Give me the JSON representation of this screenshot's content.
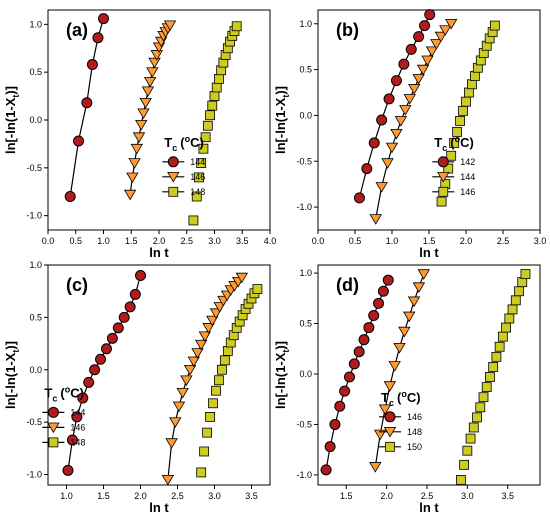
{
  "chart_data": [
    {
      "type": "scatter",
      "panel_label": "(a)",
      "xlabel": "ln t",
      "ylabel": "ln[-ln(1-X",
      "ylabel_sub": "t",
      "ylabel_close": ")]",
      "xlim": [
        0.0,
        4.0
      ],
      "ylim": [
        -1.15,
        1.15
      ],
      "xticks": [
        0.0,
        0.5,
        1.0,
        1.5,
        2.0,
        2.5,
        3.0,
        3.5,
        4.0
      ],
      "xtick_labels": [
        "0.0",
        "0.5",
        "1.0",
        "1.5",
        "2.0",
        "2.5",
        "3.0",
        "3.5",
        "4.0"
      ],
      "yticks": [
        -1.0,
        -0.5,
        0.0,
        0.5,
        1.0
      ],
      "ytick_labels": [
        "-1.0",
        "-0.5",
        "0.0",
        "0.5",
        "1.0"
      ],
      "legend_title": "T",
      "legend_title_sub": "c",
      "legend_title_paren": "(",
      "legend_title_sup": "o",
      "legend_title_unit": "C)",
      "legend_position": "right-middle",
      "series": [
        {
          "name": "144",
          "marker": "circle",
          "color": "#b01c1c",
          "line": true,
          "x": [
            0.4,
            0.55,
            0.7,
            0.8,
            0.9,
            1.0
          ],
          "y": [
            -0.8,
            -0.22,
            0.18,
            0.58,
            0.86,
            1.06
          ]
        },
        {
          "name": "146",
          "marker": "triangle",
          "color": "#ff9933",
          "line": true,
          "x": [
            1.48,
            1.52,
            1.56,
            1.6,
            1.64,
            1.68,
            1.72,
            1.76,
            1.8,
            1.84,
            1.88,
            1.92,
            1.96,
            2.0,
            2.04,
            2.08,
            2.12,
            2.16,
            2.2
          ],
          "y": [
            -0.78,
            -0.6,
            -0.45,
            -0.3,
            -0.18,
            -0.05,
            0.07,
            0.18,
            0.3,
            0.4,
            0.5,
            0.6,
            0.68,
            0.76,
            0.82,
            0.88,
            0.92,
            0.96,
            0.99
          ]
        },
        {
          "name": "148",
          "marker": "square",
          "color": "#cccc22",
          "line": false,
          "x": [
            2.62,
            2.68,
            2.72,
            2.76,
            2.8,
            2.84,
            2.88,
            2.92,
            2.96,
            3.0,
            3.04,
            3.08,
            3.12,
            3.16,
            3.2,
            3.24,
            3.28,
            3.32,
            3.36,
            3.4
          ],
          "y": [
            -1.05,
            -0.8,
            -0.6,
            -0.45,
            -0.3,
            -0.18,
            -0.06,
            0.05,
            0.15,
            0.25,
            0.34,
            0.43,
            0.52,
            0.6,
            0.68,
            0.75,
            0.82,
            0.88,
            0.93,
            0.98
          ]
        }
      ]
    },
    {
      "type": "scatter",
      "panel_label": "(b)",
      "xlabel": "ln t",
      "ylabel": "ln[-ln(1-X",
      "ylabel_sub": "t",
      "ylabel_close": ")]",
      "xlim": [
        0.0,
        3.0
      ],
      "ylim": [
        -1.25,
        1.15
      ],
      "xticks": [
        0.0,
        0.5,
        1.0,
        1.5,
        2.0,
        2.5,
        3.0
      ],
      "xtick_labels": [
        "0.0",
        "0.5",
        "1.0",
        "1.5",
        "2.0",
        "2.5",
        "3.0"
      ],
      "yticks": [
        -1.0,
        -0.5,
        0.0,
        0.5,
        1.0
      ],
      "ytick_labels": [
        "-1.0",
        "-0.5",
        "0.0",
        "0.5",
        "1.0"
      ],
      "legend_title": "T",
      "legend_title_sub": "c",
      "legend_title_paren": "(",
      "legend_title_sup": "o",
      "legend_title_unit": "C)",
      "legend_position": "right-middle",
      "series": [
        {
          "name": "142",
          "marker": "circle",
          "color": "#b01c1c",
          "line": true,
          "x": [
            0.56,
            0.66,
            0.76,
            0.86,
            0.96,
            1.06,
            1.16,
            1.26,
            1.36,
            1.44,
            1.51
          ],
          "y": [
            -0.9,
            -0.58,
            -0.3,
            -0.05,
            0.18,
            0.38,
            0.56,
            0.72,
            0.86,
            0.98,
            1.1
          ]
        },
        {
          "name": "144",
          "marker": "triangle",
          "color": "#ff9933",
          "line": true,
          "x": [
            0.78,
            0.86,
            0.94,
            1.0,
            1.06,
            1.12,
            1.18,
            1.24,
            1.3,
            1.36,
            1.42,
            1.48,
            1.54,
            1.6,
            1.66,
            1.72,
            1.8
          ],
          "y": [
            -1.13,
            -0.78,
            -0.52,
            -0.35,
            -0.2,
            -0.06,
            0.06,
            0.18,
            0.29,
            0.4,
            0.5,
            0.6,
            0.7,
            0.78,
            0.86,
            0.93,
            1.0
          ]
        },
        {
          "name": "146",
          "marker": "square",
          "color": "#cccc22",
          "line": false,
          "x": [
            1.67,
            1.72,
            1.76,
            1.8,
            1.84,
            1.88,
            1.92,
            1.96,
            2.0,
            2.04,
            2.08,
            2.12,
            2.16,
            2.2,
            2.24,
            2.28,
            2.32,
            2.36,
            2.39
          ],
          "y": [
            -0.94,
            -0.75,
            -0.58,
            -0.44,
            -0.3,
            -0.18,
            -0.06,
            0.05,
            0.15,
            0.25,
            0.34,
            0.43,
            0.52,
            0.6,
            0.68,
            0.76,
            0.84,
            0.91,
            0.98
          ]
        }
      ]
    },
    {
      "type": "scatter",
      "panel_label": "(c)",
      "xlabel": "ln t",
      "ylabel": "ln[-ln(1-X",
      "ylabel_sub": "t",
      "ylabel_close": ")]",
      "xlim": [
        0.75,
        3.75
      ],
      "ylim": [
        -1.1,
        1.0
      ],
      "xticks": [
        1.0,
        1.5,
        2.0,
        2.5,
        3.0,
        3.5
      ],
      "xtick_labels": [
        "1.0",
        "1.5",
        "2.0",
        "2.5",
        "3.0",
        "3.5"
      ],
      "yticks": [
        -1.0,
        -0.5,
        0.0,
        0.5,
        1.0
      ],
      "ytick_labels": [
        "-1.0",
        "-0.5",
        "0.0",
        "0.5",
        "1.0"
      ],
      "legend_title": "T",
      "legend_title_sub": "c",
      "legend_title_paren": "(",
      "legend_title_sup": "o",
      "legend_title_unit": "C)",
      "legend_position": "left-bottom",
      "series": [
        {
          "name": "144",
          "marker": "circle",
          "color": "#b01c1c",
          "line": true,
          "x": [
            1.02,
            1.08,
            1.14,
            1.22,
            1.3,
            1.38,
            1.46,
            1.54,
            1.62,
            1.7,
            1.78,
            1.86,
            1.93,
            2.0
          ],
          "y": [
            -0.96,
            -0.67,
            -0.45,
            -0.27,
            -0.12,
            0.0,
            0.1,
            0.2,
            0.3,
            0.4,
            0.5,
            0.6,
            0.72,
            0.9
          ]
        },
        {
          "name": "146",
          "marker": "triangle",
          "color": "#ff9933",
          "line": true,
          "x": [
            2.37,
            2.42,
            2.47,
            2.52,
            2.57,
            2.62,
            2.67,
            2.72,
            2.77,
            2.82,
            2.87,
            2.92,
            2.97,
            3.02,
            3.07,
            3.12,
            3.17,
            3.22,
            3.27,
            3.32,
            3.37
          ],
          "y": [
            -1.05,
            -0.7,
            -0.5,
            -0.35,
            -0.22,
            -0.1,
            0.0,
            0.08,
            0.16,
            0.24,
            0.32,
            0.4,
            0.47,
            0.54,
            0.6,
            0.66,
            0.71,
            0.76,
            0.8,
            0.84,
            0.88
          ]
        },
        {
          "name": "148",
          "marker": "square",
          "color": "#cccc22",
          "line": false,
          "x": [
            2.82,
            2.86,
            2.9,
            2.94,
            2.98,
            3.02,
            3.06,
            3.1,
            3.14,
            3.18,
            3.22,
            3.26,
            3.3,
            3.34,
            3.38,
            3.42,
            3.46,
            3.5,
            3.54,
            3.58
          ],
          "y": [
            -0.98,
            -0.78,
            -0.6,
            -0.45,
            -0.32,
            -0.2,
            -0.1,
            0.0,
            0.09,
            0.18,
            0.26,
            0.33,
            0.4,
            0.46,
            0.52,
            0.58,
            0.63,
            0.68,
            0.73,
            0.77
          ]
        }
      ]
    },
    {
      "type": "scatter",
      "panel_label": "(d)",
      "xlabel": "ln t",
      "ylabel": "ln[-ln(1-X",
      "ylabel_sub": "t",
      "ylabel_close": ")]",
      "xlim": [
        1.15,
        3.9
      ],
      "ylim": [
        -1.1,
        1.08
      ],
      "xticks": [
        1.5,
        2.0,
        2.5,
        3.0,
        3.5
      ],
      "xtick_labels": [
        "1.5",
        "2.0",
        "2.5",
        "3.0",
        "3.5"
      ],
      "yticks": [
        -1.0,
        -0.5,
        0.0,
        0.5,
        1.0
      ],
      "ytick_labels": [
        "-1.0",
        "-0.5",
        "0.0",
        "0.5",
        "1.0"
      ],
      "legend_title": "T",
      "legend_title_sub": "c",
      "legend_title_paren": "(",
      "legend_title_sup": "o",
      "legend_title_unit": "C)",
      "legend_position": "right-bottom",
      "series": [
        {
          "name": "146",
          "marker": "circle",
          "color": "#b01c1c",
          "line": true,
          "x": [
            1.25,
            1.3,
            1.36,
            1.42,
            1.48,
            1.54,
            1.6,
            1.66,
            1.72,
            1.78,
            1.84,
            1.9,
            1.96,
            2.02
          ],
          "y": [
            -0.95,
            -0.72,
            -0.5,
            -0.32,
            -0.17,
            -0.03,
            0.1,
            0.22,
            0.34,
            0.46,
            0.58,
            0.7,
            0.82,
            0.93
          ]
        },
        {
          "name": "148",
          "marker": "triangle",
          "color": "#ff9933",
          "line": true,
          "x": [
            1.86,
            1.92,
            1.98,
            2.04,
            2.1,
            2.16,
            2.22,
            2.28,
            2.34,
            2.4,
            2.46
          ],
          "y": [
            -0.92,
            -0.6,
            -0.35,
            -0.12,
            0.08,
            0.26,
            0.42,
            0.57,
            0.72,
            0.86,
            0.99
          ]
        },
        {
          "name": "150",
          "marker": "square",
          "color": "#cccc22",
          "line": false,
          "x": [
            2.92,
            2.96,
            3.0,
            3.04,
            3.08,
            3.12,
            3.16,
            3.2,
            3.24,
            3.28,
            3.32,
            3.36,
            3.4,
            3.44,
            3.48,
            3.52,
            3.56,
            3.6,
            3.64,
            3.68,
            3.72
          ],
          "y": [
            -1.05,
            -0.9,
            -0.76,
            -0.64,
            -0.53,
            -0.43,
            -0.33,
            -0.23,
            -0.13,
            -0.03,
            0.07,
            0.17,
            0.27,
            0.37,
            0.46,
            0.55,
            0.64,
            0.73,
            0.82,
            0.91,
            0.99
          ]
        }
      ]
    }
  ]
}
